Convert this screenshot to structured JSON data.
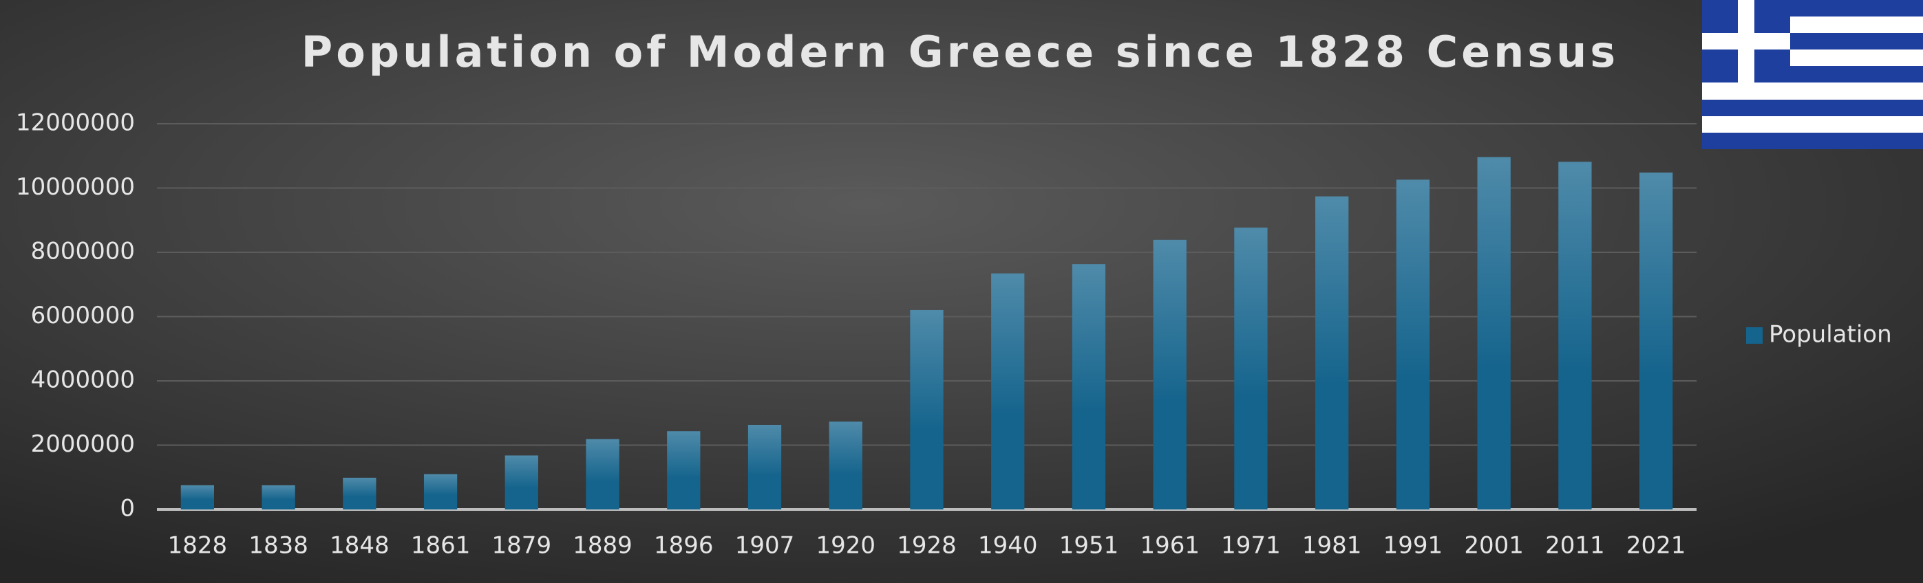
{
  "chart_data": {
    "type": "bar",
    "title": "Population of Modern Greece since 1828 Census",
    "categories": [
      "1828",
      "1838",
      "1848",
      "1861",
      "1879",
      "1889",
      "1896",
      "1907",
      "1920",
      "1928",
      "1940",
      "1951",
      "1961",
      "1971",
      "1981",
      "1991",
      "2001",
      "2011",
      "2021"
    ],
    "series": [
      {
        "name": "Population",
        "color": "#15648d",
        "values": [
          753400,
          752000,
          986700,
          1096800,
          1679800,
          2187200,
          2433800,
          2631900,
          2731000,
          6204700,
          7344900,
          7632800,
          8388600,
          8768600,
          9740400,
          10259900,
          10964000,
          10816300,
          10482500
        ]
      }
    ],
    "ylim": [
      0,
      12000000
    ],
    "yticks": [
      0,
      2000000,
      4000000,
      6000000,
      8000000,
      10000000,
      12000000
    ],
    "grid": true,
    "legend": "right"
  }
}
